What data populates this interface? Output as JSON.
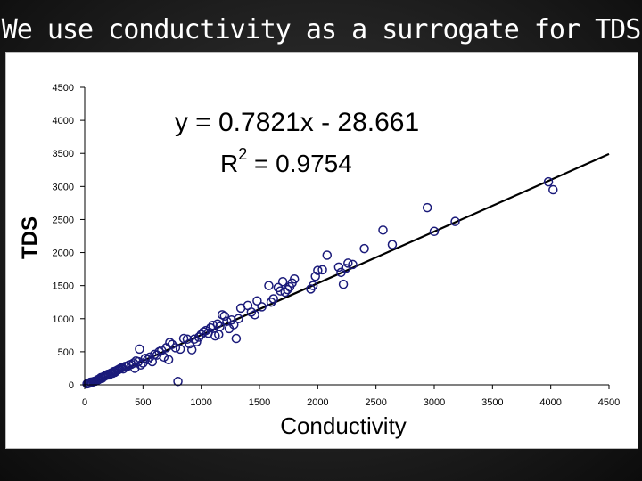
{
  "slide": {
    "title": "We use conductivity as a surrogate for TDS"
  },
  "chart_data": {
    "type": "scatter",
    "title": "",
    "xlabel": "Conductivity",
    "ylabel": "TDS",
    "xlim": [
      0,
      4500
    ],
    "ylim": [
      0,
      4500
    ],
    "x_ticks": [
      "0",
      "500",
      "1000",
      "1500",
      "2000",
      "2500",
      "3000",
      "3500",
      "4000",
      "4500"
    ],
    "y_ticks": [
      "0",
      "500",
      "1000",
      "1500",
      "2000",
      "2500",
      "3000",
      "3500",
      "4000",
      "4500"
    ],
    "grid": false,
    "legend": "none",
    "marker_color": "#1a1a7a",
    "trendline": {
      "equation_text": "y = 0.7821x - 28.661",
      "r2_label": "R",
      "r2_exponent": "2",
      "r2_value_text": " = 0.9754",
      "slope": 0.7821,
      "intercept": -28.661,
      "color": "#000000"
    },
    "series": [
      {
        "points": [
          [
            20,
            15
          ],
          [
            30,
            20
          ],
          [
            40,
            25
          ],
          [
            50,
            40
          ],
          [
            60,
            35
          ],
          [
            70,
            45
          ],
          [
            80,
            50
          ],
          [
            90,
            55
          ],
          [
            100,
            60
          ],
          [
            110,
            75
          ],
          [
            120,
            80
          ],
          [
            130,
            95
          ],
          [
            140,
            110
          ],
          [
            150,
            100
          ],
          [
            160,
            120
          ],
          [
            170,
            130
          ],
          [
            180,
            140
          ],
          [
            190,
            145
          ],
          [
            200,
            160
          ],
          [
            210,
            150
          ],
          [
            220,
            170
          ],
          [
            230,
            180
          ],
          [
            240,
            175
          ],
          [
            250,
            200
          ],
          [
            260,
            190
          ],
          [
            270,
            210
          ],
          [
            280,
            220
          ],
          [
            290,
            230
          ],
          [
            300,
            240
          ],
          [
            310,
            250
          ],
          [
            320,
            260
          ],
          [
            330,
            240
          ],
          [
            350,
            280
          ],
          [
            360,
            270
          ],
          [
            380,
            300
          ],
          [
            400,
            310
          ],
          [
            420,
            330
          ],
          [
            430,
            250
          ],
          [
            440,
            360
          ],
          [
            460,
            350
          ],
          [
            470,
            540
          ],
          [
            480,
            300
          ],
          [
            500,
            330
          ],
          [
            520,
            400
          ],
          [
            540,
            380
          ],
          [
            560,
            420
          ],
          [
            580,
            350
          ],
          [
            600,
            460
          ],
          [
            620,
            450
          ],
          [
            640,
            500
          ],
          [
            660,
            520
          ],
          [
            680,
            420
          ],
          [
            700,
            560
          ],
          [
            720,
            380
          ],
          [
            730,
            640
          ],
          [
            750,
            610
          ],
          [
            780,
            560
          ],
          [
            800,
            50
          ],
          [
            820,
            540
          ],
          [
            850,
            700
          ],
          [
            880,
            690
          ],
          [
            900,
            620
          ],
          [
            920,
            530
          ],
          [
            940,
            690
          ],
          [
            960,
            650
          ],
          [
            980,
            720
          ],
          [
            1000,
            760
          ],
          [
            1020,
            800
          ],
          [
            1040,
            820
          ],
          [
            1060,
            780
          ],
          [
            1080,
            860
          ],
          [
            1100,
            900
          ],
          [
            1120,
            740
          ],
          [
            1140,
            920
          ],
          [
            1150,
            760
          ],
          [
            1160,
            880
          ],
          [
            1180,
            1060
          ],
          [
            1200,
            1040
          ],
          [
            1220,
            960
          ],
          [
            1240,
            850
          ],
          [
            1260,
            980
          ],
          [
            1280,
            910
          ],
          [
            1300,
            700
          ],
          [
            1320,
            1000
          ],
          [
            1340,
            1160
          ],
          [
            1400,
            1200
          ],
          [
            1430,
            1100
          ],
          [
            1460,
            1060
          ],
          [
            1480,
            1270
          ],
          [
            1520,
            1180
          ],
          [
            1580,
            1500
          ],
          [
            1600,
            1250
          ],
          [
            1620,
            1300
          ],
          [
            1660,
            1470
          ],
          [
            1680,
            1420
          ],
          [
            1700,
            1560
          ],
          [
            1720,
            1400
          ],
          [
            1740,
            1440
          ],
          [
            1760,
            1480
          ],
          [
            1780,
            1540
          ],
          [
            1800,
            1600
          ],
          [
            1940,
            1450
          ],
          [
            1960,
            1500
          ],
          [
            1980,
            1640
          ],
          [
            2000,
            1730
          ],
          [
            2040,
            1740
          ],
          [
            2080,
            1960
          ],
          [
            2180,
            1780
          ],
          [
            2200,
            1700
          ],
          [
            2220,
            1520
          ],
          [
            2240,
            1760
          ],
          [
            2260,
            1840
          ],
          [
            2300,
            1820
          ],
          [
            2400,
            2060
          ],
          [
            2560,
            2340
          ],
          [
            2640,
            2120
          ],
          [
            2940,
            2680
          ],
          [
            3000,
            2320
          ],
          [
            3180,
            2470
          ],
          [
            3980,
            3070
          ],
          [
            4020,
            2950
          ]
        ]
      }
    ]
  }
}
